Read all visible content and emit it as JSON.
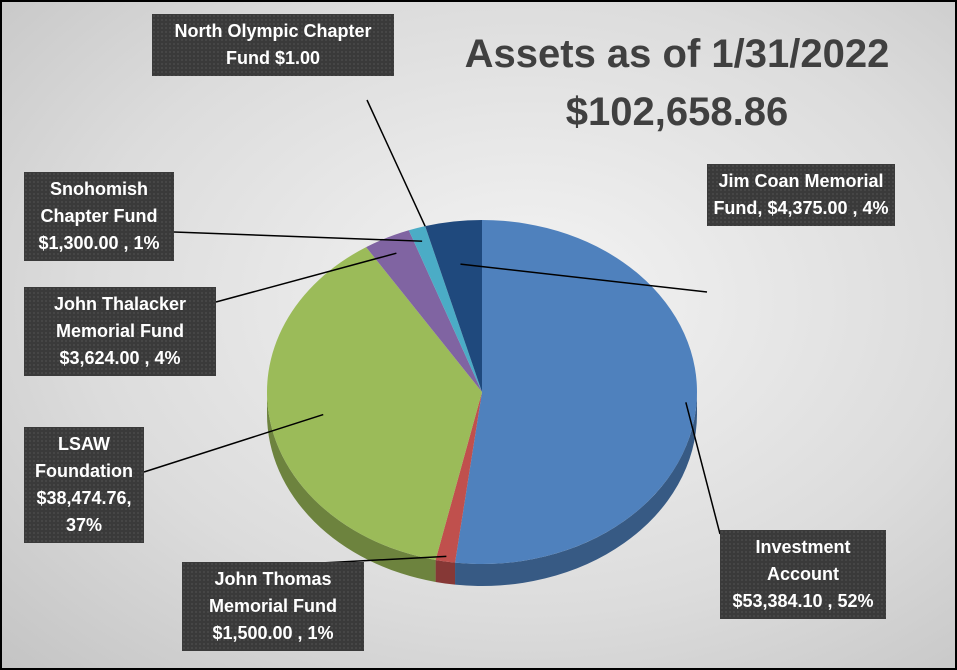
{
  "chart_data": {
    "type": "pie3d",
    "title": "Assets as of 1/31/2022",
    "subtitle": "$102,658.86",
    "categories": [
      "Investment Account",
      "John Thomas Memorial Fund",
      "LSAW Foundation",
      "John Thalacker Memorial Fund",
      "Snohomish Chapter Fund",
      "North Olympic Chapter Fund",
      "Jim Coan Memorial Fund,"
    ],
    "values": [
      53384.1,
      1500.0,
      38474.76,
      3624.0,
      1300.0,
      1.0,
      4375.0
    ],
    "value_labels": [
      "$53,384.10 , 52%",
      "$1,500.00 , 1%",
      "$38,474.76, 37%",
      "$3,624.00 , 4%",
      "$1,300.00 , 1%",
      "$1.00",
      "$4,375.00 , 4%"
    ],
    "colors": [
      "#4f81bd",
      "#c0504d",
      "#9bbb59",
      "#8064a2",
      "#4bacc6",
      "#f79646",
      "#1f497d"
    ]
  }
}
